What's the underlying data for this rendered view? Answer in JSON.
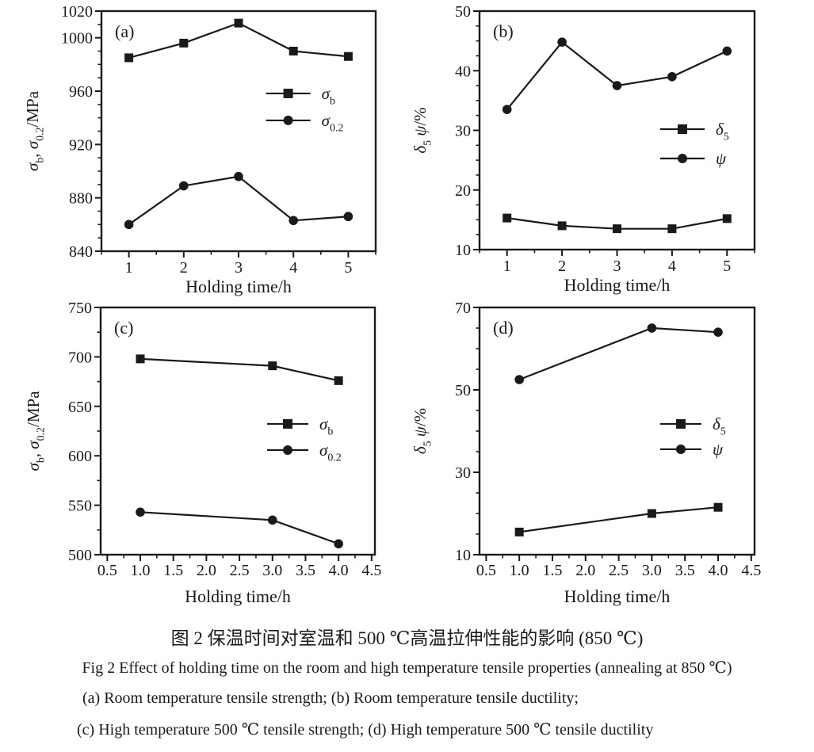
{
  "figure": {
    "title_zh": "图 2  保温时间对室温和 500 ℃高温拉伸性能的影响 (850 ℃)",
    "caption_en": "Fig 2   Effect of holding time on the room and high temperature tensile properties (annealing at 850 ℃)",
    "subcaption_ab": "(a) Room temperature tensile strength;  (b) Room temperature tensile ductility;",
    "subcaption_cd": "(c) High temperature 500 ℃ tensile strength;  (d) High temperature 500 ℃ tensile ductility"
  },
  "colors": {
    "ink": "#1a1a1a",
    "background": "#ffffff"
  },
  "chart_data": [
    {
      "id": "a",
      "type": "line",
      "panel_label": "(a)",
      "xlabel": "Holding time/h",
      "ylabel": "σb, σ0.2/MPa",
      "ylabel_tokens": [
        {
          "t": "σ",
          "i": true
        },
        {
          "t": "b",
          "sub": true
        },
        {
          "t": ", "
        },
        {
          "t": "σ",
          "i": true
        },
        {
          "t": "0.2",
          "sub": true
        },
        {
          "t": "/MPa"
        }
      ],
      "x": [
        1,
        2,
        3,
        4,
        5
      ],
      "series": [
        {
          "name": "σ_b",
          "marker": "square",
          "values": [
            985,
            996,
            1011,
            990,
            986
          ],
          "label_tokens": [
            {
              "t": "σ",
              "i": true
            },
            {
              "t": "b",
              "sub": true
            }
          ]
        },
        {
          "name": "σ_0.2",
          "marker": "circle",
          "values": [
            860,
            889,
            896,
            863,
            866
          ],
          "label_tokens": [
            {
              "t": "σ",
              "i": true
            },
            {
              "t": "0.2",
              "sub": true
            }
          ]
        }
      ],
      "xlim": [
        0.5,
        5.5
      ],
      "ylim": [
        840,
        1020
      ],
      "xticks": [
        1,
        2,
        3,
        4,
        5
      ],
      "xtick_labels": [
        "1",
        "2",
        "3",
        "4",
        "5"
      ],
      "xtick_minor_step": 0.5,
      "yticks": [
        840,
        880,
        920,
        960,
        1000,
        1020
      ],
      "ytick_labels": [
        "840",
        "880",
        "920",
        "960",
        "1000",
        "1020"
      ],
      "ytick_minor_step": 10,
      "grid": false,
      "legend": {
        "fx": 0.6,
        "fy": 0.343,
        "row_gap": 34,
        "line_len": 56
      }
    },
    {
      "id": "b",
      "type": "line",
      "panel_label": "(b)",
      "xlabel": "Holding time/h",
      "ylabel": "δ5 ψ/%",
      "ylabel_tokens": [
        {
          "t": "δ",
          "i": true
        },
        {
          "t": "5",
          "sub": true
        },
        {
          "t": " "
        },
        {
          "t": "ψ",
          "i": true
        },
        {
          "t": "/%"
        }
      ],
      "x": [
        1,
        2,
        3,
        4,
        5
      ],
      "series": [
        {
          "name": "δ_5",
          "marker": "square",
          "values": [
            15.3,
            14,
            13.5,
            13.5,
            15.2
          ],
          "label_tokens": [
            {
              "t": "δ",
              "i": true
            },
            {
              "t": "5",
              "sub": true
            }
          ]
        },
        {
          "name": "ψ",
          "marker": "circle",
          "values": [
            33.5,
            44.8,
            37.5,
            39,
            43.3
          ],
          "label_tokens": [
            {
              "t": "ψ",
              "i": true
            }
          ]
        }
      ],
      "xlim": [
        0.5,
        5.5
      ],
      "ylim": [
        10,
        50
      ],
      "xticks": [
        1,
        2,
        3,
        4,
        5
      ],
      "xtick_labels": [
        "1",
        "2",
        "3",
        "4",
        "5"
      ],
      "xtick_minor_step": 0.5,
      "yticks": [
        10,
        20,
        30,
        40,
        50
      ],
      "ytick_labels": [
        "10",
        "20",
        "30",
        "40",
        "50"
      ],
      "ytick_minor_step": 2.5,
      "grid": false,
      "legend": {
        "fx": 0.657,
        "fy": 0.495,
        "row_gap": 37,
        "line_len": 56
      }
    },
    {
      "id": "c",
      "type": "line",
      "panel_label": "(c)",
      "xlabel": "Holding time/h",
      "ylabel": "σb, σ0.2/MPa",
      "ylabel_tokens": [
        {
          "t": "σ",
          "i": true
        },
        {
          "t": "b",
          "sub": true
        },
        {
          "t": ", "
        },
        {
          "t": "σ",
          "i": true
        },
        {
          "t": "0.2",
          "sub": true
        },
        {
          "t": "/MPa"
        }
      ],
      "x": [
        1.0,
        3.0,
        4.0
      ],
      "series": [
        {
          "name": "σ_b",
          "marker": "square",
          "values": [
            698,
            691,
            676
          ],
          "label_tokens": [
            {
              "t": "σ",
              "i": true
            },
            {
              "t": "b",
              "sub": true
            }
          ]
        },
        {
          "name": "σ_0.2",
          "marker": "circle",
          "values": [
            543,
            535,
            511
          ],
          "label_tokens": [
            {
              "t": "σ",
              "i": true
            },
            {
              "t": "0.2",
              "sub": true
            }
          ]
        }
      ],
      "xlim": [
        0.4,
        4.55
      ],
      "ylim": [
        500,
        750
      ],
      "xticks": [
        0.5,
        1.0,
        1.5,
        2.0,
        2.5,
        3.0,
        3.5,
        4.0,
        4.5
      ],
      "xtick_labels": [
        "0.5",
        "1.0",
        "1.5",
        "2.0",
        "2.5",
        "3.0",
        "3.5",
        "4.0",
        "4.5"
      ],
      "xtick_minor_step": 0.25,
      "yticks": [
        500,
        550,
        600,
        650,
        700,
        750
      ],
      "ytick_labels": [
        "500",
        "550",
        "600",
        "650",
        "700",
        "750"
      ],
      "ytick_minor_step": 25,
      "grid": false,
      "legend": {
        "fx": 0.607,
        "fy": 0.471,
        "row_gap": 33,
        "line_len": 52
      }
    },
    {
      "id": "d",
      "type": "line",
      "panel_label": "(d)",
      "xlabel": "Holding time/h",
      "ylabel": "δ5 ψ/%",
      "ylabel_tokens": [
        {
          "t": "δ",
          "i": true
        },
        {
          "t": "5",
          "sub": true
        },
        {
          "t": " "
        },
        {
          "t": "ψ",
          "i": true
        },
        {
          "t": "/%"
        }
      ],
      "x": [
        1.0,
        3.0,
        4.0
      ],
      "series": [
        {
          "name": "δ_5",
          "marker": "square",
          "values": [
            15.5,
            20,
            21.5
          ],
          "label_tokens": [
            {
              "t": "δ",
              "i": true
            },
            {
              "t": "5",
              "sub": true
            }
          ]
        },
        {
          "name": "ψ",
          "marker": "circle",
          "values": [
            52.5,
            65,
            64
          ],
          "label_tokens": [
            {
              "t": "ψ",
              "i": true
            }
          ]
        }
      ],
      "xlim": [
        0.4,
        4.55
      ],
      "ylim": [
        10,
        70
      ],
      "xticks": [
        0.5,
        1.0,
        1.5,
        2.0,
        2.5,
        3.0,
        3.5,
        4.0,
        4.5
      ],
      "xtick_labels": [
        "0.5",
        "1.0",
        "1.5",
        "2.0",
        "2.5",
        "3.0",
        "3.5",
        "4.0",
        "4.5"
      ],
      "xtick_minor_step": 0.25,
      "yticks": [
        10,
        30,
        50,
        70
      ],
      "ytick_labels": [
        "10",
        "30",
        "50",
        "70"
      ],
      "ytick_minor_step": 5,
      "grid": false,
      "legend": {
        "fx": 0.657,
        "fy": 0.471,
        "row_gap": 32,
        "line_len": 52
      }
    }
  ]
}
